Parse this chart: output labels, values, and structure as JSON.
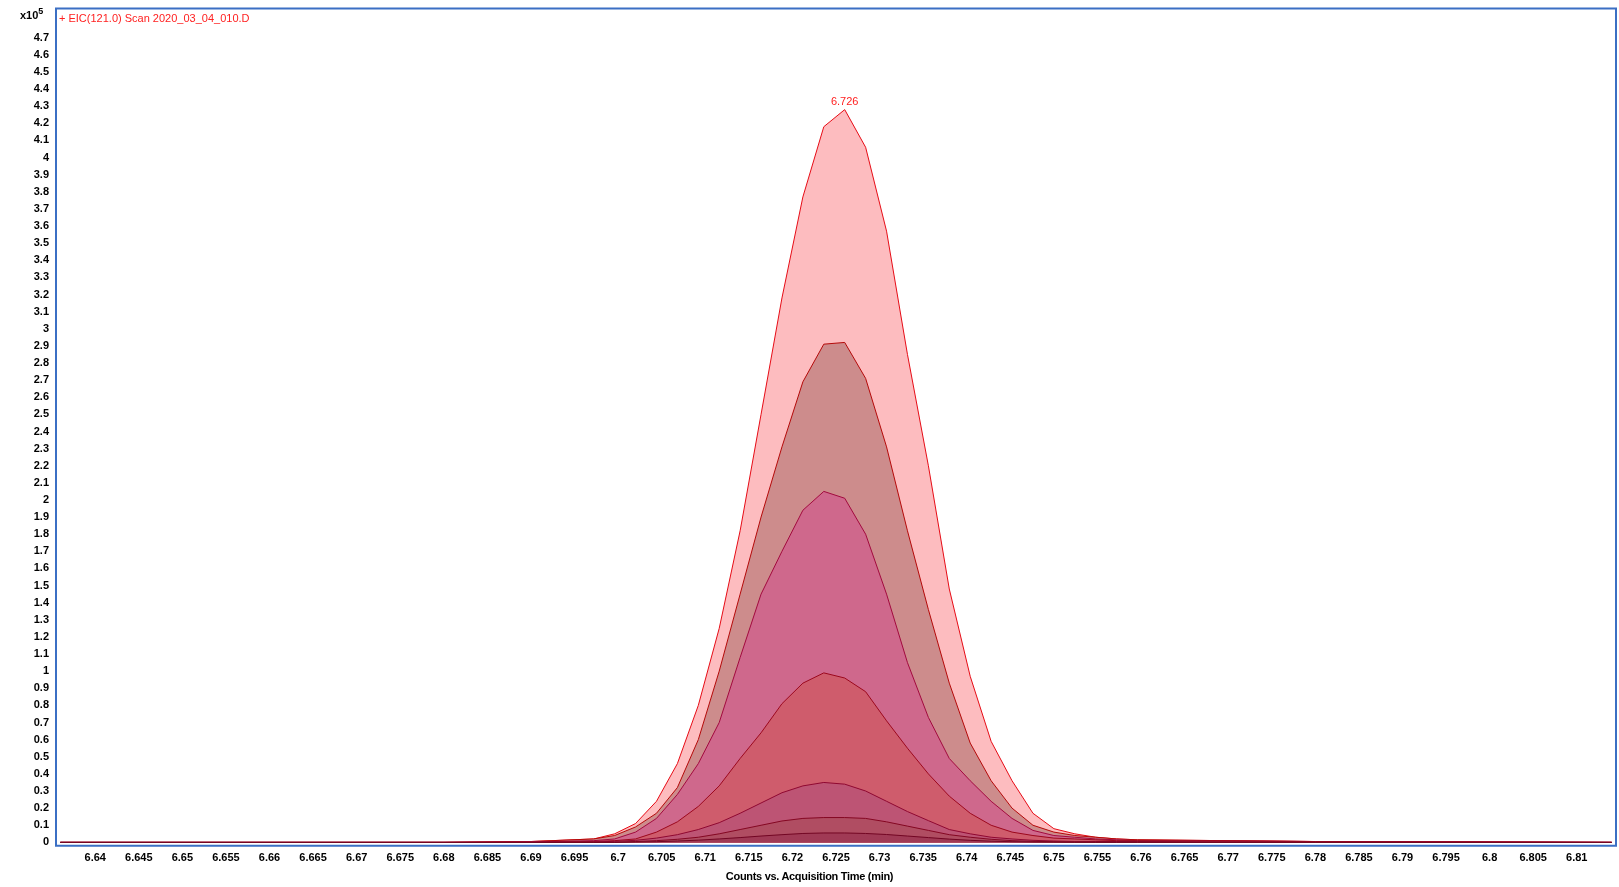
{
  "chart_data": {
    "type": "area",
    "title": "+ EIC(121.0) Scan 2020_03_04_010.D",
    "xlabel": "Counts vs. Acquisition Time (min)",
    "ylabel": "x10$^{5}$",
    "x": [
      6.636,
      6.68,
      6.69,
      6.6972,
      6.6996,
      6.702,
      6.7044,
      6.7068,
      6.7092,
      6.7116,
      6.714,
      6.7164,
      6.7188,
      6.7212,
      6.7236,
      6.726,
      6.7284,
      6.7308,
      6.7332,
      6.7356,
      6.738,
      6.7404,
      6.7428,
      6.7452,
      6.7476,
      6.75,
      6.7524,
      6.7548,
      6.7572,
      6.7596,
      6.78,
      6.814
    ],
    "series": [
      {
        "color": "#fdbcbf",
        "values": [
          0,
          0,
          0.005,
          0.02,
          0.05,
          0.11,
          0.24,
          0.46,
          0.8,
          1.25,
          1.82,
          2.5,
          3.18,
          3.77,
          4.18,
          4.28,
          4.06,
          3.57,
          2.85,
          2.2,
          1.48,
          0.97,
          0.59,
          0.36,
          0.17,
          0.08,
          0.05,
          0.03,
          0.02,
          0.015,
          0.005,
          0
        ]
      },
      {
        "color": "#cd8c8c",
        "values": [
          0,
          0,
          0.005,
          0.02,
          0.04,
          0.09,
          0.17,
          0.32,
          0.6,
          1.0,
          1.45,
          1.9,
          2.31,
          2.69,
          2.91,
          2.92,
          2.71,
          2.31,
          1.82,
          1.36,
          0.93,
          0.58,
          0.36,
          0.2,
          0.1,
          0.06,
          0.04,
          0.03,
          0.02,
          0.015,
          0.005,
          0
        ]
      },
      {
        "color": "#cf688c",
        "values": [
          0,
          0,
          0.003,
          0.01,
          0.02,
          0.06,
          0.14,
          0.28,
          0.46,
          0.7,
          1.08,
          1.45,
          1.7,
          1.94,
          2.05,
          2.01,
          1.8,
          1.45,
          1.05,
          0.73,
          0.49,
          0.36,
          0.24,
          0.14,
          0.07,
          0.04,
          0.03,
          0.02,
          0.015,
          0.01,
          0.005,
          0
        ]
      },
      {
        "color": "#cf5c6c",
        "values": [
          0,
          0,
          0,
          0.005,
          0.01,
          0.02,
          0.06,
          0.12,
          0.21,
          0.33,
          0.49,
          0.64,
          0.81,
          0.93,
          0.99,
          0.96,
          0.88,
          0.71,
          0.55,
          0.4,
          0.27,
          0.17,
          0.1,
          0.06,
          0.04,
          0.025,
          0.02,
          0.015,
          0.01,
          0.01,
          0.005,
          0
        ]
      },
      {
        "color": "#bd5474",
        "values": [
          0,
          0,
          0,
          0.003,
          0.006,
          0.012,
          0.025,
          0.045,
          0.075,
          0.115,
          0.17,
          0.23,
          0.29,
          0.33,
          0.35,
          0.34,
          0.3,
          0.24,
          0.18,
          0.127,
          0.075,
          0.05,
          0.03,
          0.02,
          0.012,
          0.008,
          0.005,
          0.005,
          0.005,
          0.005,
          0,
          0
        ]
      },
      {
        "color": "#b04d62",
        "values": [
          0,
          0,
          0,
          0,
          0,
          0.005,
          0.01,
          0.018,
          0.03,
          0.05,
          0.075,
          0.1,
          0.125,
          0.14,
          0.145,
          0.145,
          0.14,
          0.12,
          0.095,
          0.07,
          0.045,
          0.03,
          0.018,
          0.01,
          0.006,
          0.004,
          0.003,
          0.002,
          0.002,
          0.002,
          0,
          0
        ]
      },
      {
        "color": "#a03a55",
        "values": [
          0,
          0,
          0,
          0,
          0,
          0.002,
          0.004,
          0.008,
          0.013,
          0.02,
          0.028,
          0.037,
          0.045,
          0.052,
          0.055,
          0.055,
          0.052,
          0.046,
          0.037,
          0.028,
          0.019,
          0.012,
          0.007,
          0.004,
          0.002,
          0.001,
          0,
          0,
          0,
          0,
          0,
          0
        ]
      }
    ],
    "xlim": [
      6.6355,
      6.8145
    ],
    "ylim": [
      -0.02,
      4.87
    ],
    "xticks": [
      6.64,
      6.645,
      6.65,
      6.655,
      6.66,
      6.665,
      6.67,
      6.675,
      6.68,
      6.685,
      6.69,
      6.695,
      6.7,
      6.705,
      6.71,
      6.715,
      6.72,
      6.725,
      6.73,
      6.735,
      6.74,
      6.745,
      6.75,
      6.755,
      6.76,
      6.765,
      6.77,
      6.775,
      6.78,
      6.785,
      6.79,
      6.795,
      6.8,
      6.805,
      6.81
    ],
    "yticks": [
      0,
      0.1,
      0.2,
      0.3,
      0.4,
      0.5,
      0.6,
      0.7,
      0.8,
      0.9,
      1,
      1.1,
      1.2,
      1.3,
      1.4,
      1.5,
      1.6,
      1.7,
      1.8,
      1.9,
      2,
      2.1,
      2.2,
      2.3,
      2.4,
      2.5,
      2.6,
      2.7,
      2.8,
      2.9,
      3,
      3.1,
      3.2,
      3.3,
      3.4,
      3.5,
      3.6,
      3.7,
      3.8,
      3.9,
      4,
      4.1,
      4.2,
      4.3,
      4.4,
      4.5,
      4.6,
      4.7
    ],
    "annotations": [
      {
        "text": "6.726",
        "x": 6.726,
        "y": 4.28
      }
    ]
  }
}
